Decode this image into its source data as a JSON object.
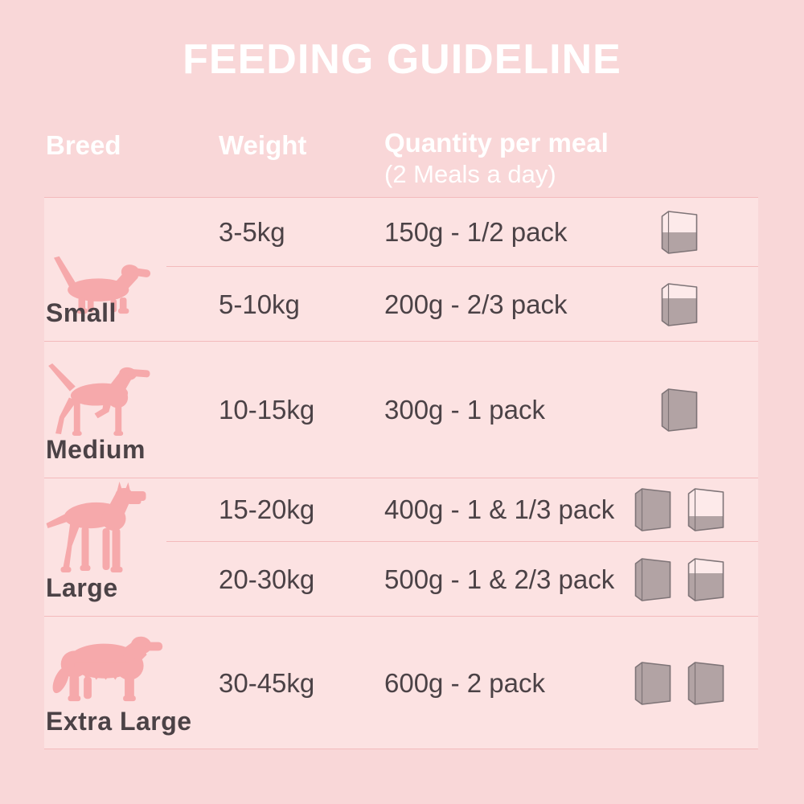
{
  "title": "FEEDING GUIDELINE",
  "table": {
    "headers": {
      "breed": "Breed",
      "weight": "Weight",
      "quantity_line1": "Quantity per meal",
      "quantity_line2": "(2 Meals a day)"
    }
  },
  "breeds": [
    {
      "name": "Small",
      "dog_icon": "dachshund-silhouette",
      "rows": [
        {
          "weight": "3-5kg",
          "quantity": "150g - 1/2 pack",
          "packs": [
            0.5
          ]
        },
        {
          "weight": "5-10kg",
          "quantity": "200g - 2/3 pack",
          "packs": [
            0.67
          ]
        }
      ]
    },
    {
      "name": "Medium",
      "dog_icon": "pointer-silhouette",
      "rows": [
        {
          "weight": "10-15kg",
          "quantity": "300g - 1 pack",
          "packs": [
            1
          ]
        }
      ]
    },
    {
      "name": "Large",
      "dog_icon": "great-dane-silhouette",
      "rows": [
        {
          "weight": "15-20kg",
          "quantity": "400g - 1 & 1/3 pack",
          "packs": [
            1,
            0.33
          ]
        },
        {
          "weight": "20-30kg",
          "quantity": "500g - 1 & 2/3 pack",
          "packs": [
            1,
            0.67
          ]
        }
      ]
    },
    {
      "name": "Extra Large",
      "dog_icon": "bernese-silhouette",
      "rows": [
        {
          "weight": "30-45kg",
          "quantity": "600g - 2 pack",
          "packs": [
            1,
            1
          ]
        }
      ]
    }
  ],
  "colors": {
    "background": "#f9d7d8",
    "table_band": "#fce2e2",
    "divider": "#f3babc",
    "heading_text": "#ffffff",
    "body_text": "#4b4246",
    "dog_silhouette": "#f6a9ab",
    "pack_fill": "#b2a3a4",
    "pack_outline": "#7e7477",
    "pack_empty": "#fdeaea"
  },
  "chart_data": {
    "type": "table",
    "title": "FEEDING GUIDELINE",
    "columns": [
      "Breed",
      "Weight",
      "Quantity per meal (2 Meals a day)"
    ],
    "rows": [
      [
        "Small",
        "3-5kg",
        "150g - 1/2 pack"
      ],
      [
        "Small",
        "5-10kg",
        "200g - 2/3 pack"
      ],
      [
        "Medium",
        "10-15kg",
        "300g - 1 pack"
      ],
      [
        "Large",
        "15-20kg",
        "400g - 1 & 1/3 pack"
      ],
      [
        "Large",
        "20-30kg",
        "500g - 1 & 2/3 pack"
      ],
      [
        "Extra Large",
        "30-45kg",
        "600g - 2 pack"
      ]
    ],
    "notes": "pack icons show fill fraction of a food pack per meal"
  }
}
